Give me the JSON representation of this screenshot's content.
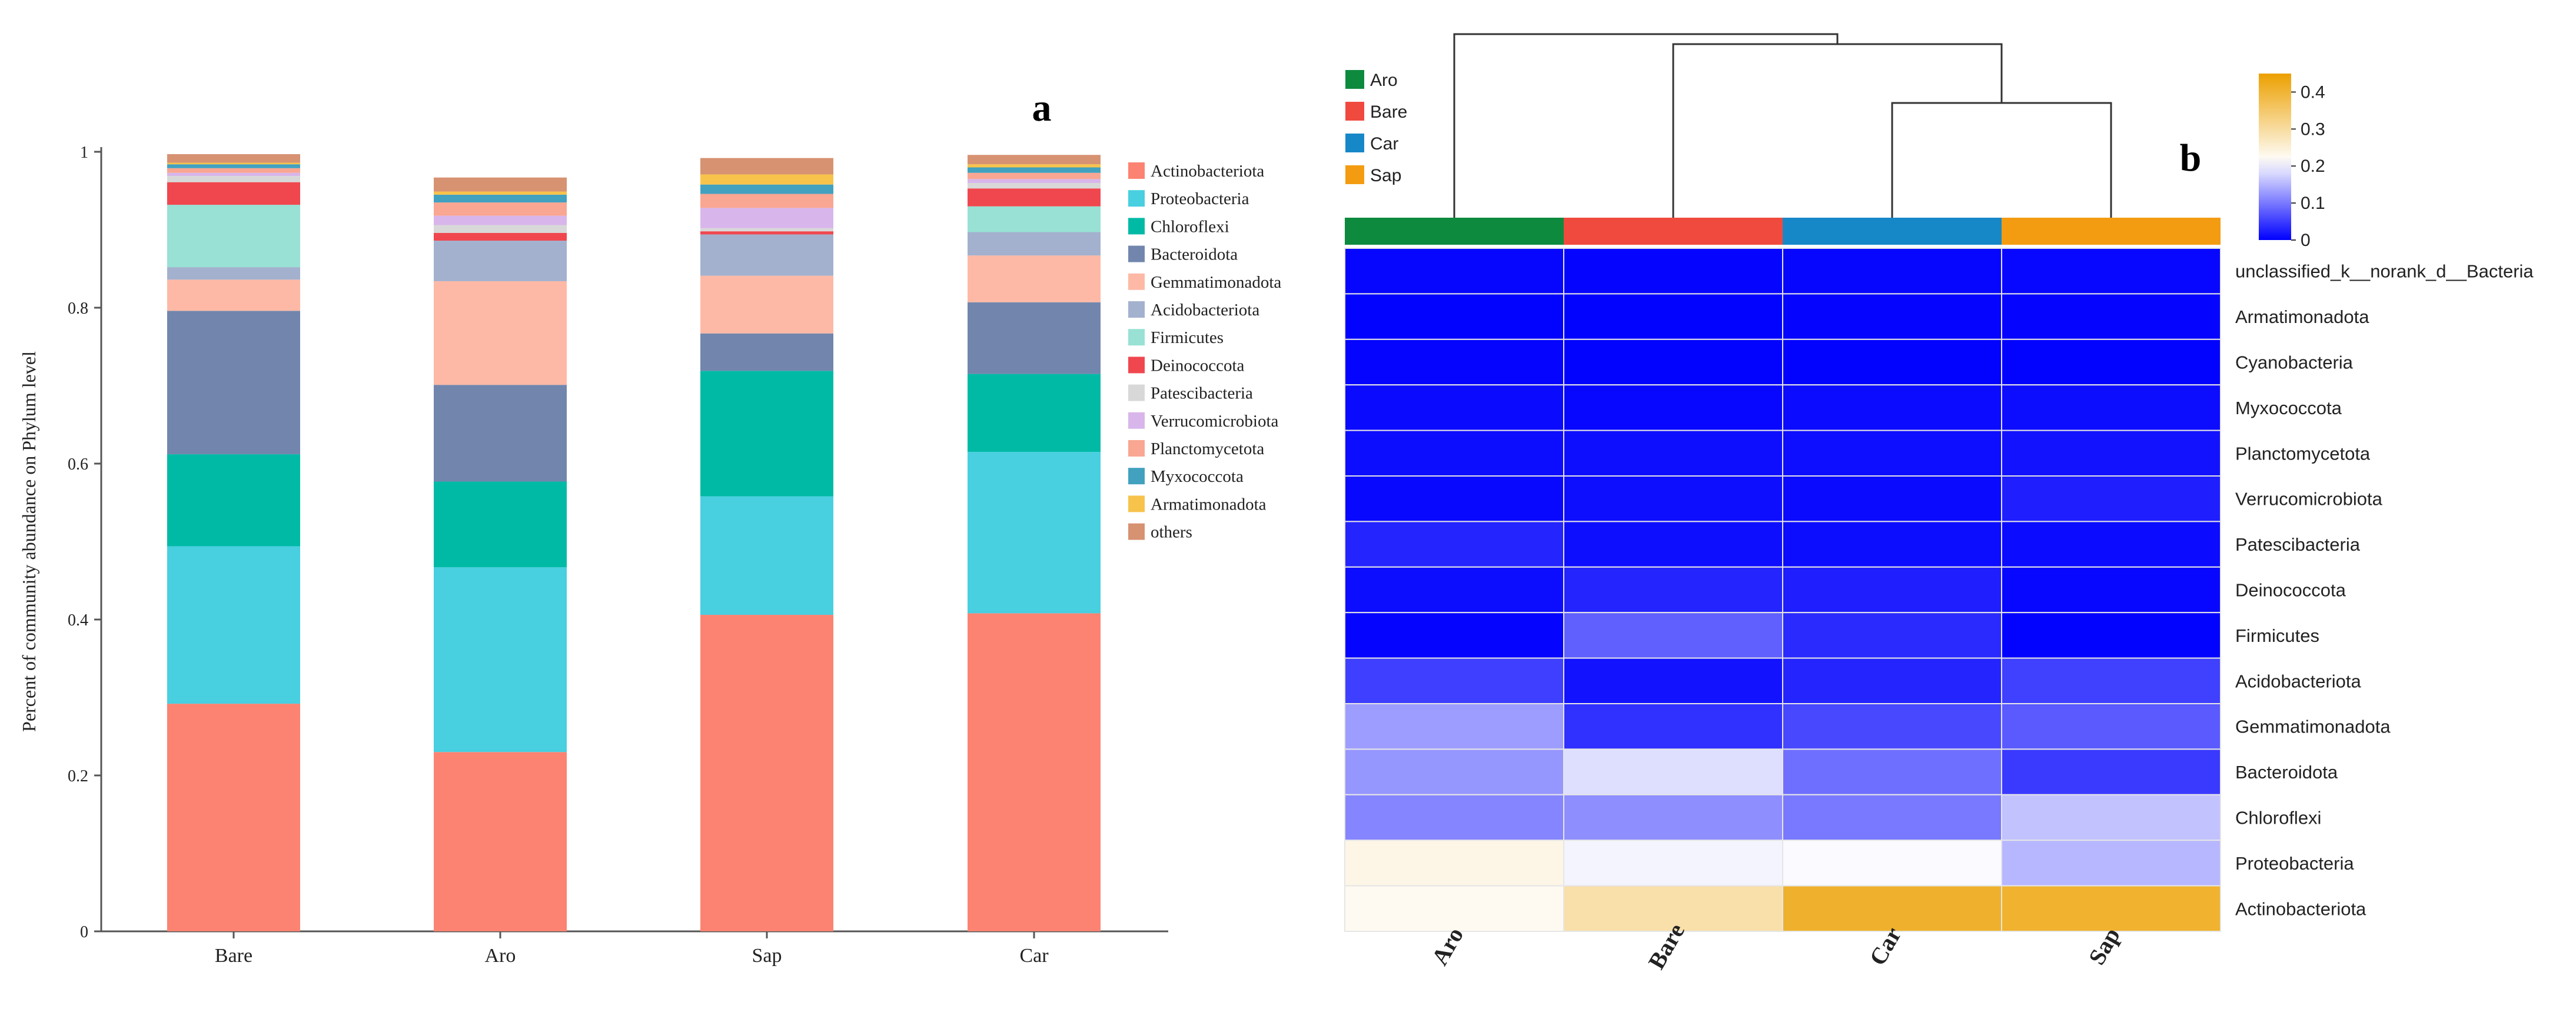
{
  "chart_data": [
    {
      "type": "bar",
      "stacked": true,
      "panel_label": "a",
      "title": "",
      "xlabel": "",
      "ylabel": "Percent of community abundance on Phylum level",
      "ylim": [
        0,
        1
      ],
      "yticks": [
        "0",
        "0.2",
        "0.4",
        "0.6",
        "0.8",
        "1"
      ],
      "categories": [
        "Bare",
        "Aro",
        "Sap",
        "Car"
      ],
      "legend_position": "right",
      "series": [
        {
          "name": "Actinobacteriota",
          "color": "#FC8371",
          "values": [
            0.292,
            0.23,
            0.406,
            0.408
          ]
        },
        {
          "name": "Proteobacteria",
          "color": "#48CFE0",
          "values": [
            0.202,
            0.237,
            0.152,
            0.207
          ]
        },
        {
          "name": "Chloroflexi",
          "color": "#00BAA6",
          "values": [
            0.118,
            0.11,
            0.161,
            0.1
          ]
        },
        {
          "name": "Bacteroidota",
          "color": "#7286AD",
          "values": [
            0.184,
            0.124,
            0.048,
            0.092
          ]
        },
        {
          "name": "Gemmatimonadota",
          "color": "#FEB9A6",
          "values": [
            0.04,
            0.133,
            0.074,
            0.06
          ]
        },
        {
          "name": "Acidobacteriota",
          "color": "#A3B1CE",
          "values": [
            0.016,
            0.052,
            0.053,
            0.03
          ]
        },
        {
          "name": "Firmicutes",
          "color": "#98E1D4",
          "values": [
            0.08,
            0.0,
            0.0,
            0.033
          ]
        },
        {
          "name": "Deinococcota",
          "color": "#F0474F",
          "values": [
            0.029,
            0.01,
            0.004,
            0.023
          ]
        },
        {
          "name": "Patescibacteria",
          "color": "#D8D8D8",
          "values": [
            0.008,
            0.01,
            0.004,
            0.007
          ]
        },
        {
          "name": "Verrucomicrobiota",
          "color": "#D8B6EB",
          "values": [
            0.004,
            0.012,
            0.026,
            0.005
          ]
        },
        {
          "name": "Planctomycetota",
          "color": "#F9A692",
          "values": [
            0.006,
            0.017,
            0.018,
            0.008
          ]
        },
        {
          "name": "Myxococcota",
          "color": "#42A1BF",
          "values": [
            0.005,
            0.01,
            0.012,
            0.007
          ]
        },
        {
          "name": "Armatimonadota",
          "color": "#F7C34B",
          "values": [
            0.002,
            0.004,
            0.013,
            0.004
          ]
        },
        {
          "name": "others",
          "color": "#D79272",
          "values": [
            0.011,
            0.018,
            0.021,
            0.012
          ]
        }
      ]
    },
    {
      "type": "heatmap",
      "panel_label": "b",
      "title": "",
      "columns": [
        "Aro",
        "Bare",
        "Car",
        "Sap"
      ],
      "column_colors": [
        "#0E8A3E",
        "#F04A3E",
        "#1688C8",
        "#F39C12"
      ],
      "group_legend": [
        {
          "name": "Aro",
          "color": "#0E8A3E"
        },
        {
          "name": "Bare",
          "color": "#F04A3E"
        },
        {
          "name": "Car",
          "color": "#1688C8"
        },
        {
          "name": "Sap",
          "color": "#F39C12"
        }
      ],
      "rows": [
        "unclassified_k__norank_d__Bacteria",
        "Armatimonadota",
        "Cyanobacteria",
        "Myxococcota",
        "Planctomycetota",
        "Verrucomicrobiota",
        "Patescibacteria",
        "Deinococcota",
        "Firmicutes",
        "Acidobacteriota",
        "Gemmatimonadota",
        "Bacteroidota",
        "Chloroflexi",
        "Proteobacteria",
        "Actinobacteriota"
      ],
      "values": [
        [
          0.005,
          0.004,
          0.005,
          0.006
        ],
        [
          0.002,
          0.002,
          0.003,
          0.004
        ],
        [
          0.003,
          0.002,
          0.002,
          0.002
        ],
        [
          0.008,
          0.006,
          0.009,
          0.01
        ],
        [
          0.01,
          0.012,
          0.011,
          0.015
        ],
        [
          0.007,
          0.012,
          0.008,
          0.025
        ],
        [
          0.03,
          0.012,
          0.01,
          0.009
        ],
        [
          0.01,
          0.03,
          0.025,
          0.006
        ],
        [
          0.003,
          0.08,
          0.035,
          0.002
        ],
        [
          0.052,
          0.015,
          0.03,
          0.053
        ],
        [
          0.13,
          0.04,
          0.06,
          0.075
        ],
        [
          0.124,
          0.184,
          0.092,
          0.048
        ],
        [
          0.11,
          0.118,
          0.1,
          0.161
        ],
        [
          0.234,
          0.202,
          0.207,
          0.152
        ],
        [
          0.225,
          0.292,
          0.408,
          0.406
        ]
      ],
      "colorbar": {
        "min": 0,
        "max": 0.45,
        "ticks": [
          "0",
          "0.1",
          "0.2",
          "0.3",
          "0.4"
        ]
      },
      "column_dendrogram": true
    }
  ]
}
